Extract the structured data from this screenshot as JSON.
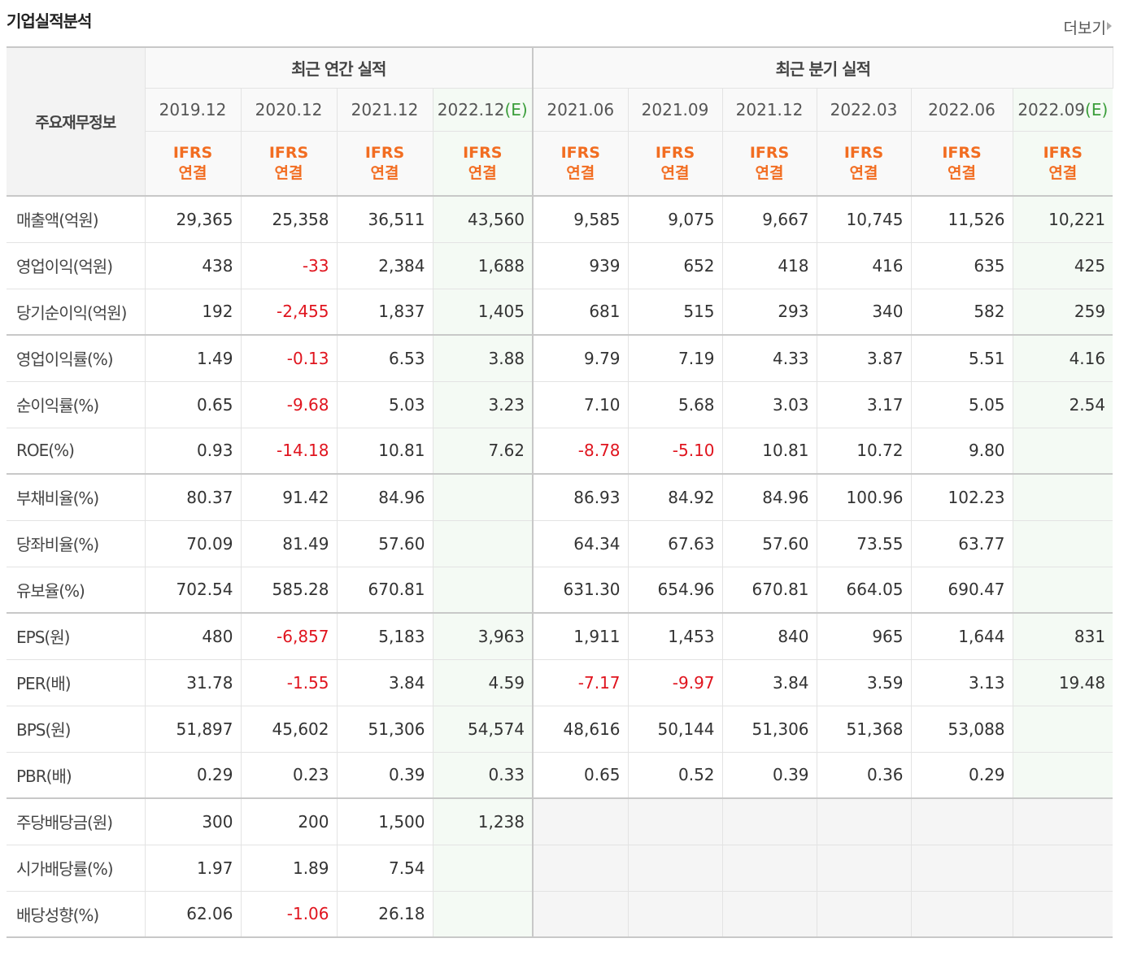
{
  "header": {
    "title": "기업실적분석",
    "more": "더보기"
  },
  "table": {
    "row_header": "주요재무정보",
    "groups": [
      {
        "label": "최근 연간 실적",
        "span": 4
      },
      {
        "label": "최근 분기 실적",
        "span": 6
      }
    ],
    "columns": [
      {
        "period": "2019.12",
        "basis": "IFRS",
        "consolidation": "연결"
      },
      {
        "period": "2020.12",
        "basis": "IFRS",
        "consolidation": "연결"
      },
      {
        "period": "2021.12",
        "basis": "IFRS",
        "consolidation": "연결"
      },
      {
        "period": "2022.12",
        "estimate": "(E)",
        "basis": "IFRS",
        "consolidation": "연결"
      },
      {
        "period": "2021.06",
        "basis": "IFRS",
        "consolidation": "연결"
      },
      {
        "period": "2021.09",
        "basis": "IFRS",
        "consolidation": "연결"
      },
      {
        "period": "2021.12",
        "basis": "IFRS",
        "consolidation": "연결"
      },
      {
        "period": "2022.03",
        "basis": "IFRS",
        "consolidation": "연결"
      },
      {
        "period": "2022.06",
        "basis": "IFRS",
        "consolidation": "연결"
      },
      {
        "period": "2022.09",
        "estimate": "(E)",
        "basis": "IFRS",
        "consolidation": "연결"
      }
    ],
    "sections": [
      {
        "rows": [
          {
            "label": "매출액(억원)",
            "values": [
              "29,365",
              "25,358",
              "36,511",
              "43,560",
              "9,585",
              "9,075",
              "9,667",
              "10,745",
              "11,526",
              "10,221"
            ]
          },
          {
            "label": "영업이익(억원)",
            "values": [
              "438",
              "-33",
              "2,384",
              "1,688",
              "939",
              "652",
              "418",
              "416",
              "635",
              "425"
            ]
          },
          {
            "label": "당기순이익(억원)",
            "values": [
              "192",
              "-2,455",
              "1,837",
              "1,405",
              "681",
              "515",
              "293",
              "340",
              "582",
              "259"
            ]
          }
        ]
      },
      {
        "rows": [
          {
            "label": "영업이익률(%)",
            "values": [
              "1.49",
              "-0.13",
              "6.53",
              "3.88",
              "9.79",
              "7.19",
              "4.33",
              "3.87",
              "5.51",
              "4.16"
            ]
          },
          {
            "label": "순이익률(%)",
            "values": [
              "0.65",
              "-9.68",
              "5.03",
              "3.23",
              "7.10",
              "5.68",
              "3.03",
              "3.17",
              "5.05",
              "2.54"
            ]
          },
          {
            "label": "ROE(%)",
            "values": [
              "0.93",
              "-14.18",
              "10.81",
              "7.62",
              "-8.78",
              "-5.10",
              "10.81",
              "10.72",
              "9.80",
              null
            ]
          }
        ]
      },
      {
        "rows": [
          {
            "label": "부채비율(%)",
            "values": [
              "80.37",
              "91.42",
              "84.96",
              null,
              "86.93",
              "84.92",
              "84.96",
              "100.96",
              "102.23",
              null
            ]
          },
          {
            "label": "당좌비율(%)",
            "values": [
              "70.09",
              "81.49",
              "57.60",
              null,
              "64.34",
              "67.63",
              "57.60",
              "73.55",
              "63.77",
              null
            ]
          },
          {
            "label": "유보율(%)",
            "values": [
              "702.54",
              "585.28",
              "670.81",
              null,
              "631.30",
              "654.96",
              "670.81",
              "664.05",
              "690.47",
              null
            ]
          }
        ]
      },
      {
        "rows": [
          {
            "label": "EPS(원)",
            "values": [
              "480",
              "-6,857",
              "5,183",
              "3,963",
              "1,911",
              "1,453",
              "840",
              "965",
              "1,644",
              "831"
            ]
          },
          {
            "label": "PER(배)",
            "values": [
              "31.78",
              "-1.55",
              "3.84",
              "4.59",
              "-7.17",
              "-9.97",
              "3.84",
              "3.59",
              "3.13",
              "19.48"
            ]
          },
          {
            "label": "BPS(원)",
            "values": [
              "51,897",
              "45,602",
              "51,306",
              "54,574",
              "48,616",
              "50,144",
              "51,306",
              "51,368",
              "53,088",
              null
            ]
          },
          {
            "label": "PBR(배)",
            "values": [
              "0.29",
              "0.23",
              "0.39",
              "0.33",
              "0.65",
              "0.52",
              "0.39",
              "0.36",
              "0.29",
              null
            ]
          }
        ]
      },
      {
        "rows": [
          {
            "label": "주당배당금(원)",
            "values": [
              "300",
              "200",
              "1,500",
              "1,238",
              null,
              null,
              null,
              null,
              null,
              null
            ]
          },
          {
            "label": "시가배당률(%)",
            "values": [
              "1.97",
              "1.89",
              "7.54",
              null,
              null,
              null,
              null,
              null,
              null,
              null
            ]
          },
          {
            "label": "배당성향(%)",
            "values": [
              "62.06",
              "-1.06",
              "26.18",
              null,
              null,
              null,
              null,
              null,
              null,
              null
            ]
          }
        ]
      }
    ]
  }
}
